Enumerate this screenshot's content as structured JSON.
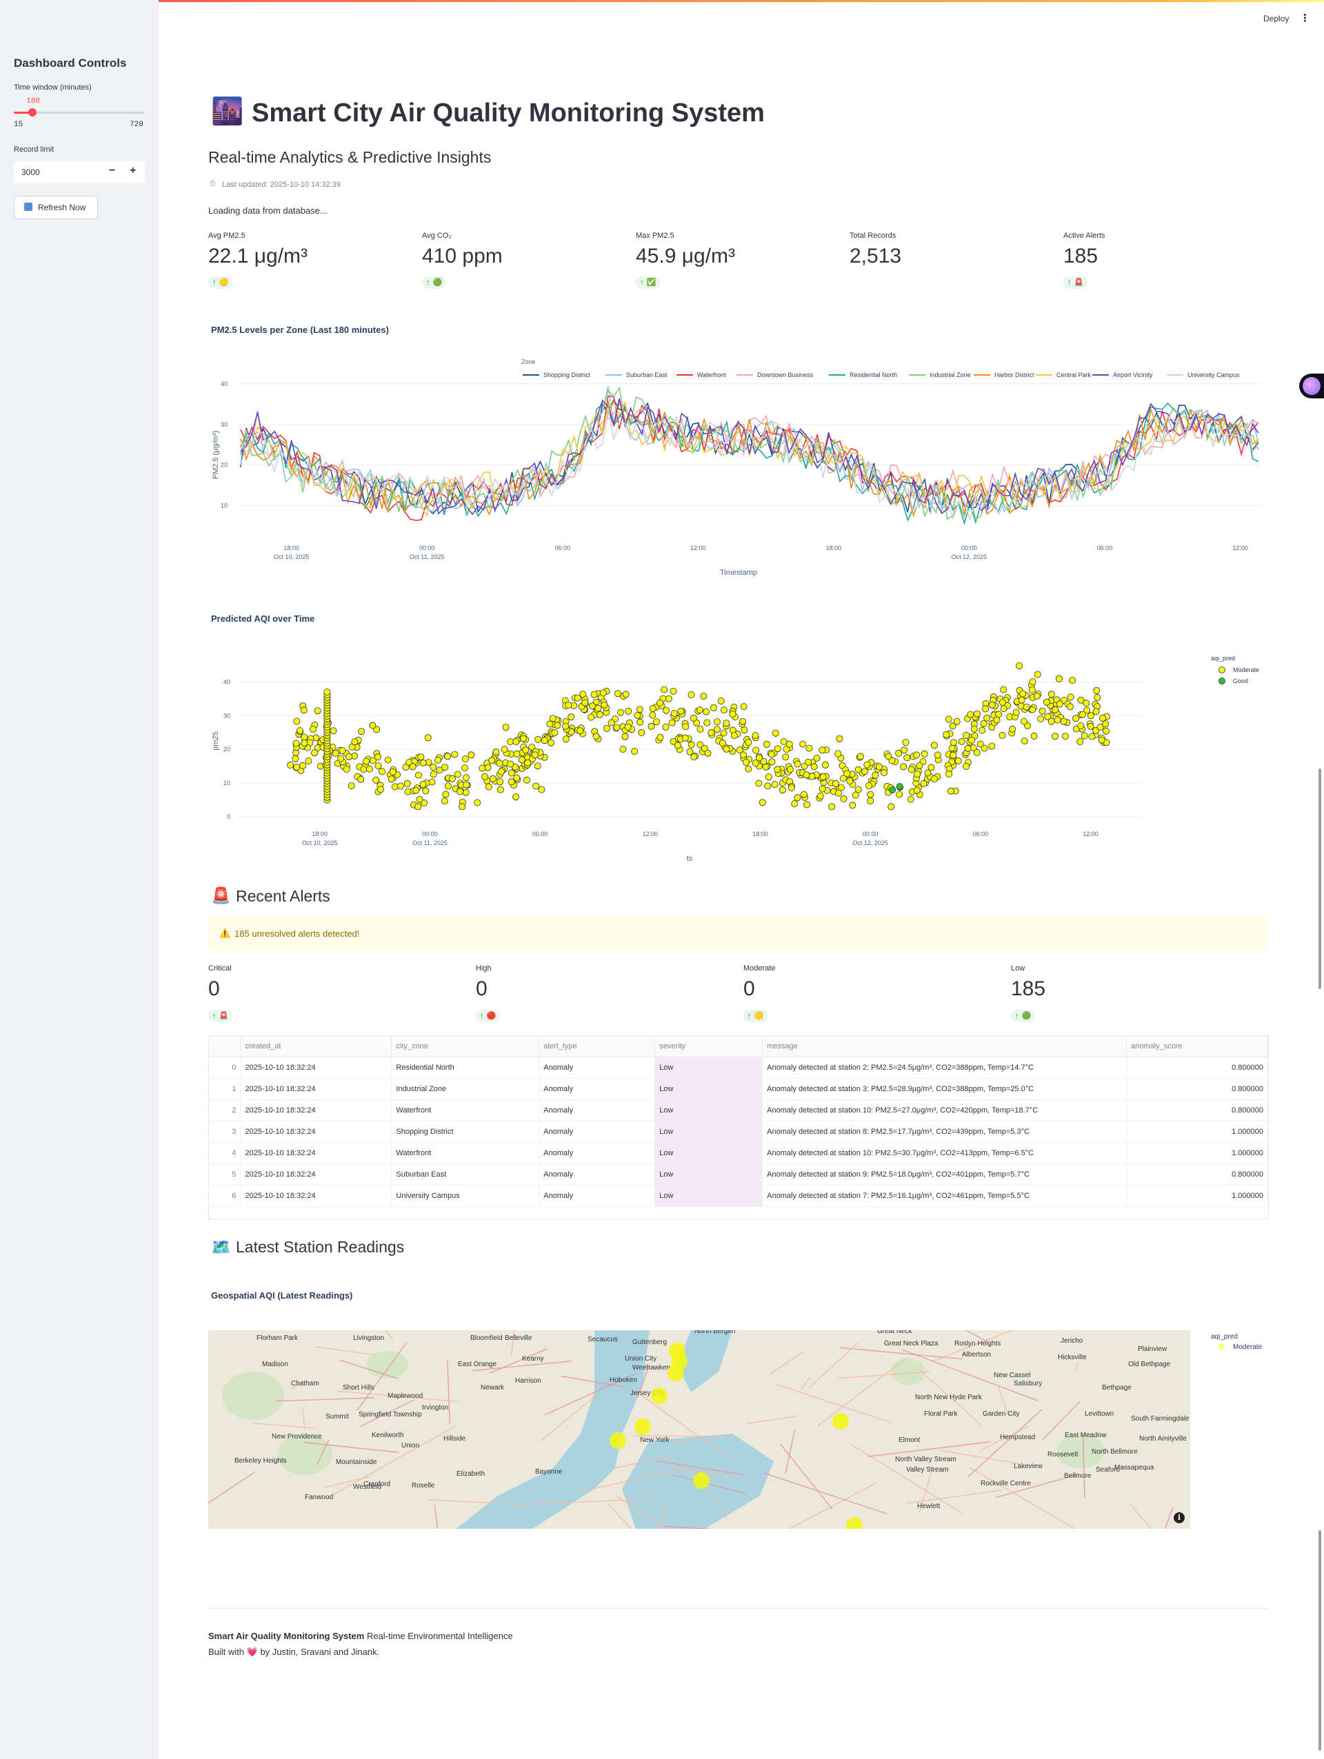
{
  "sidebar": {
    "title": "Dashboard Controls",
    "time_window": {
      "label": "Time window (minutes)",
      "value": "180",
      "min": "15",
      "max": "720",
      "fraction": 0.1436
    },
    "record_limit": {
      "label": "Record limit",
      "value": "3000",
      "minus": "−",
      "plus": "+"
    },
    "refresh_label": "Refresh Now"
  },
  "toolbar": {
    "deploy": "Deploy",
    "menu": "⋮"
  },
  "header": {
    "icon": "🌆",
    "title": "Smart City Air Quality Monitoring System",
    "subtitle": "Real-time Analytics & Predictive Insights",
    "last_updated_icon": "⏱",
    "last_updated": "Last updated: 2025-10-10 14:32:39",
    "loading": "Loading data from database..."
  },
  "metrics": [
    {
      "label": "Avg PM2.5",
      "value": "22.1 μg/m³",
      "delta_arrow": "↑",
      "delta_icon": "🟡"
    },
    {
      "label": "Avg CO₂",
      "value": "410 ppm",
      "delta_arrow": "↑",
      "delta_icon": "🟢"
    },
    {
      "label": "Max PM2.5",
      "value": "45.9 μg/m³",
      "delta_arrow": "↑",
      "delta_icon": "✅"
    },
    {
      "label": "Total Records",
      "value": "2,513"
    },
    {
      "label": "Active Alerts",
      "value": "185",
      "delta_arrow": "↑",
      "delta_icon": "🚨"
    }
  ],
  "chart_data": [
    {
      "type": "line",
      "title": "PM2.5 Levels per Zone (Last 180 minutes)",
      "xlabel": "Timestamp",
      "ylabel": "PM2.5 (μg/m³)",
      "legend_title": "Zone",
      "legend_position": "top",
      "ylim": [
        3,
        42
      ],
      "y_ticks": [
        10,
        20,
        30,
        40
      ],
      "x_ticks": [
        {
          "label": "18:00",
          "sub": "Oct 10, 2025",
          "hours": 0
        },
        {
          "label": "00:00",
          "sub": "Oct 11, 2025",
          "hours": 6
        },
        {
          "label": "06:00",
          "sub": "",
          "hours": 12
        },
        {
          "label": "12:00",
          "sub": "",
          "hours": 18
        },
        {
          "label": "18:00",
          "sub": "",
          "hours": 24
        },
        {
          "label": "00:00",
          "sub": "Oct 12, 2025",
          "hours": 30
        },
        {
          "label": "06:00",
          "sub": "",
          "hours": 36
        },
        {
          "label": "12:00",
          "sub": "",
          "hours": 42
        }
      ],
      "x_range_hours": [
        -2.4,
        42.9
      ],
      "x_hours": [
        -2.25,
        -1.5,
        0,
        3,
        6,
        9,
        12,
        14,
        16,
        18,
        21,
        24,
        27,
        30,
        33,
        36,
        38,
        40,
        42,
        42.8
      ],
      "grid": true,
      "series": [
        {
          "name": "Shopping District",
          "color": "#1f4e9c",
          "values": [
            24,
            28,
            21,
            14,
            11,
            13,
            19,
            33,
            31,
            27,
            26,
            23,
            13,
            12,
            14,
            18,
            31,
            30,
            28,
            26
          ]
        },
        {
          "name": "Suburban East",
          "color": "#8fc3ea",
          "values": [
            23,
            26,
            19,
            15,
            13,
            12,
            18,
            35,
            28,
            25,
            27,
            21,
            12,
            11,
            15,
            16,
            29,
            32,
            27,
            29
          ]
        },
        {
          "name": "Waterfront",
          "color": "#e8373a",
          "values": [
            25,
            27,
            22,
            13,
            10,
            12,
            20,
            34,
            30,
            26,
            25,
            24,
            14,
            13,
            13,
            17,
            30,
            31,
            26,
            27
          ]
        },
        {
          "name": "Downtown Business",
          "color": "#f5a6a8",
          "values": [
            22,
            29,
            20,
            16,
            12,
            14,
            17,
            32,
            29,
            28,
            28,
            22,
            15,
            14,
            16,
            19,
            28,
            29,
            29,
            31
          ]
        },
        {
          "name": "Residential North",
          "color": "#22a39a",
          "values": [
            24,
            25,
            21,
            14,
            12,
            11,
            19,
            33,
            31,
            27,
            26,
            20,
            11,
            10,
            14,
            18,
            30,
            33,
            28,
            25
          ]
        },
        {
          "name": "Industrial Zone",
          "color": "#7ed07a",
          "values": [
            21,
            27,
            18,
            15,
            11,
            13,
            21,
            36,
            32,
            26,
            24,
            23,
            13,
            9,
            15,
            17,
            29,
            31,
            27,
            28
          ]
        },
        {
          "name": "Harbor District",
          "color": "#f08a1c",
          "values": [
            25,
            26,
            22,
            12,
            13,
            12,
            18,
            33,
            30,
            27,
            27,
            21,
            10,
            12,
            13,
            19,
            31,
            30,
            28,
            27
          ]
        },
        {
          "name": "Central Park",
          "color": "#f4c542",
          "values": [
            23,
            28,
            20,
            14,
            12,
            14,
            20,
            34,
            28,
            25,
            26,
            22,
            14,
            13,
            14,
            18,
            28,
            32,
            26,
            29
          ]
        },
        {
          "name": "Airport Vicinity",
          "color": "#6a3fbf",
          "values": [
            26,
            30,
            23,
            13,
            11,
            12,
            19,
            35,
            31,
            28,
            25,
            24,
            13,
            11,
            15,
            17,
            32,
            31,
            29,
            26
          ]
        },
        {
          "name": "University Campus",
          "color": "#cfd3dc",
          "values": [
            22,
            25,
            19,
            15,
            13,
            13,
            17,
            31,
            29,
            26,
            27,
            20,
            12,
            10,
            14,
            16,
            27,
            30,
            27,
            28
          ]
        }
      ]
    },
    {
      "type": "scatter",
      "title": "Predicted AQI over Time",
      "xlabel": "ts",
      "ylabel": "pm25",
      "legend_title": "aqi_pred",
      "legend_position": "right",
      "ylim": [
        -1,
        46
      ],
      "y_ticks": [
        0,
        10,
        20,
        30,
        40
      ],
      "x_ticks": [
        {
          "label": "18:00",
          "sub": "Oct 10, 2025",
          "hours": 0
        },
        {
          "label": "00:00",
          "sub": "Oct 11, 2025",
          "hours": 6
        },
        {
          "label": "06:00",
          "sub": "",
          "hours": 12
        },
        {
          "label": "12:00",
          "sub": "",
          "hours": 18
        },
        {
          "label": "18:00",
          "sub": "",
          "hours": 24
        },
        {
          "label": "00:00",
          "sub": "Oct 12, 2025",
          "hours": 30
        },
        {
          "label": "06:00",
          "sub": "",
          "hours": 36
        },
        {
          "label": "12:00",
          "sub": "",
          "hours": 42
        }
      ],
      "x_range_hours": [
        -4.5,
        44.8
      ],
      "grid": true,
      "series": [
        {
          "name": "Moderate",
          "color": "#f4f70a"
        },
        {
          "name": "Good",
          "color": "#2bbf33"
        }
      ],
      "trend_hours": [
        -1.7,
        0,
        2,
        4,
        6,
        8,
        10,
        12,
        13,
        15,
        17,
        19,
        21,
        23,
        24,
        26,
        28,
        30,
        32,
        34,
        35,
        37,
        39,
        41,
        42.9
      ],
      "trend_pm25": [
        21,
        22,
        17,
        13,
        12,
        12,
        14,
        19,
        27,
        33,
        29,
        27,
        26,
        25,
        16,
        13,
        12,
        12,
        13,
        16,
        21,
        31,
        34,
        31,
        28
      ],
      "dense_column": {
        "hours": 0.4,
        "pm25_range": [
          5,
          37
        ]
      },
      "good_points": [
        {
          "hours": 31.2,
          "pm25": 8
        },
        {
          "hours": 31.6,
          "pm25": 9
        }
      ]
    }
  ],
  "alerts": {
    "icon": "🚨",
    "heading": "Recent Alerts",
    "banner_icon": "⚠️",
    "banner": "185 unresolved alerts detected!",
    "severity_metrics": [
      {
        "label": "Critical",
        "value": "0",
        "delta_arrow": "↑",
        "delta_icon": "🚨"
      },
      {
        "label": "High",
        "value": "0",
        "delta_arrow": "↑",
        "delta_icon": "🔴"
      },
      {
        "label": "Moderate",
        "value": "0",
        "delta_arrow": "↑",
        "delta_icon": "🟡"
      },
      {
        "label": "Low",
        "value": "185",
        "delta_arrow": "↑",
        "delta_icon": "🟢"
      }
    ],
    "table": {
      "columns": [
        "",
        "created_at",
        "city_zone",
        "alert_type",
        "severity",
        "message",
        "anomaly_score"
      ],
      "rows": [
        [
          "0",
          "2025-10-10 18:32:24",
          "Residential North",
          "Anomaly",
          "Low",
          "Anomaly detected at station 2: PM2.5=24.5μg/m³, CO2=388ppm, Temp=14.7°C",
          "0.800000"
        ],
        [
          "1",
          "2025-10-10 18:32:24",
          "Industrial Zone",
          "Anomaly",
          "Low",
          "Anomaly detected at station 3: PM2.5=28.9μg/m³, CO2=388ppm, Temp=25.0°C",
          "0.800000"
        ],
        [
          "2",
          "2025-10-10 18:32:24",
          "Waterfront",
          "Anomaly",
          "Low",
          "Anomaly detected at station 10: PM2.5=27.0μg/m³, CO2=420ppm, Temp=18.7°C",
          "0.800000"
        ],
        [
          "3",
          "2025-10-10 18:32:24",
          "Shopping District",
          "Anomaly",
          "Low",
          "Anomaly detected at station 8: PM2.5=17.7μg/m³, CO2=439ppm, Temp=5.3°C",
          "1.000000"
        ],
        [
          "4",
          "2025-10-10 18:32:24",
          "Waterfront",
          "Anomaly",
          "Low",
          "Anomaly detected at station 10: PM2.5=30.7μg/m³, CO2=413ppm, Temp=6.5°C",
          "1.000000"
        ],
        [
          "5",
          "2025-10-10 18:32:24",
          "Suburban East",
          "Anomaly",
          "Low",
          "Anomaly detected at station 9: PM2.5=18.0μg/m³, CO2=401ppm, Temp=5.7°C",
          "0.800000"
        ],
        [
          "6",
          "2025-10-10 18:32:24",
          "University Campus",
          "Anomaly",
          "Low",
          "Anomaly detected at station 7: PM2.5=16.1μg/m³, CO2=461ppm, Temp=5.5°C",
          "1.000000"
        ]
      ]
    }
  },
  "stations": {
    "icon": "🗺️",
    "heading": "Latest Station Readings",
    "map_title": "Geospatial AQI (Latest Readings)",
    "legend_title": "aqi_pred",
    "legend_item": "Moderate",
    "marker_color": "#f4f70a",
    "place_labels": [
      "Florham Park",
      "Livingston",
      "Bloomfield",
      "Belleville",
      "Secaucus",
      "Guttenberg",
      "North Bergen",
      "Great Neck",
      "Great Neck Plaza",
      "Roslyn Heights",
      "Albertson",
      "Jericho",
      "Hicksville",
      "Old Bethpage",
      "Plainview",
      "Madison",
      "East Orange",
      "Kearny",
      "Union City",
      "Weehawken",
      "Chatham",
      "Short Hills",
      "Newark",
      "Harrison",
      "Hoboken",
      "North New Hyde Park",
      "New Cassel",
      "Salisbury",
      "Bethpage",
      "Maplewood",
      "Irvington",
      "Jersey City",
      "New York",
      "Floral Park",
      "Garden City",
      "Levittown",
      "South Farmingdale",
      "Summit",
      "Springfield Township",
      "Hempstead",
      "East Meadow",
      "New Providence",
      "Kenilworth",
      "Union",
      "Hillside",
      "Elmont",
      "North Amityville",
      "Berkeley Heights",
      "North Valley Stream",
      "Roosevelt",
      "North Bellmore",
      "Mountainside",
      "Elizabeth",
      "Bayonne",
      "Valley Stream",
      "Lakeview",
      "Massapequa",
      "Cranford",
      "Roselle",
      "Rockville Centre",
      "Bellmore",
      "Seaford",
      "Westfield",
      "Fanwood",
      "Hewlett"
    ],
    "info_icon": "ℹ"
  },
  "footer": {
    "brand": "Smart Air Quality Monitoring System",
    "tagline": " Real-time Environmental Intelligence",
    "built_prefix": "Built with ",
    "heart": "💗",
    "built_suffix": " by Justin, Sravani and Jinank."
  }
}
